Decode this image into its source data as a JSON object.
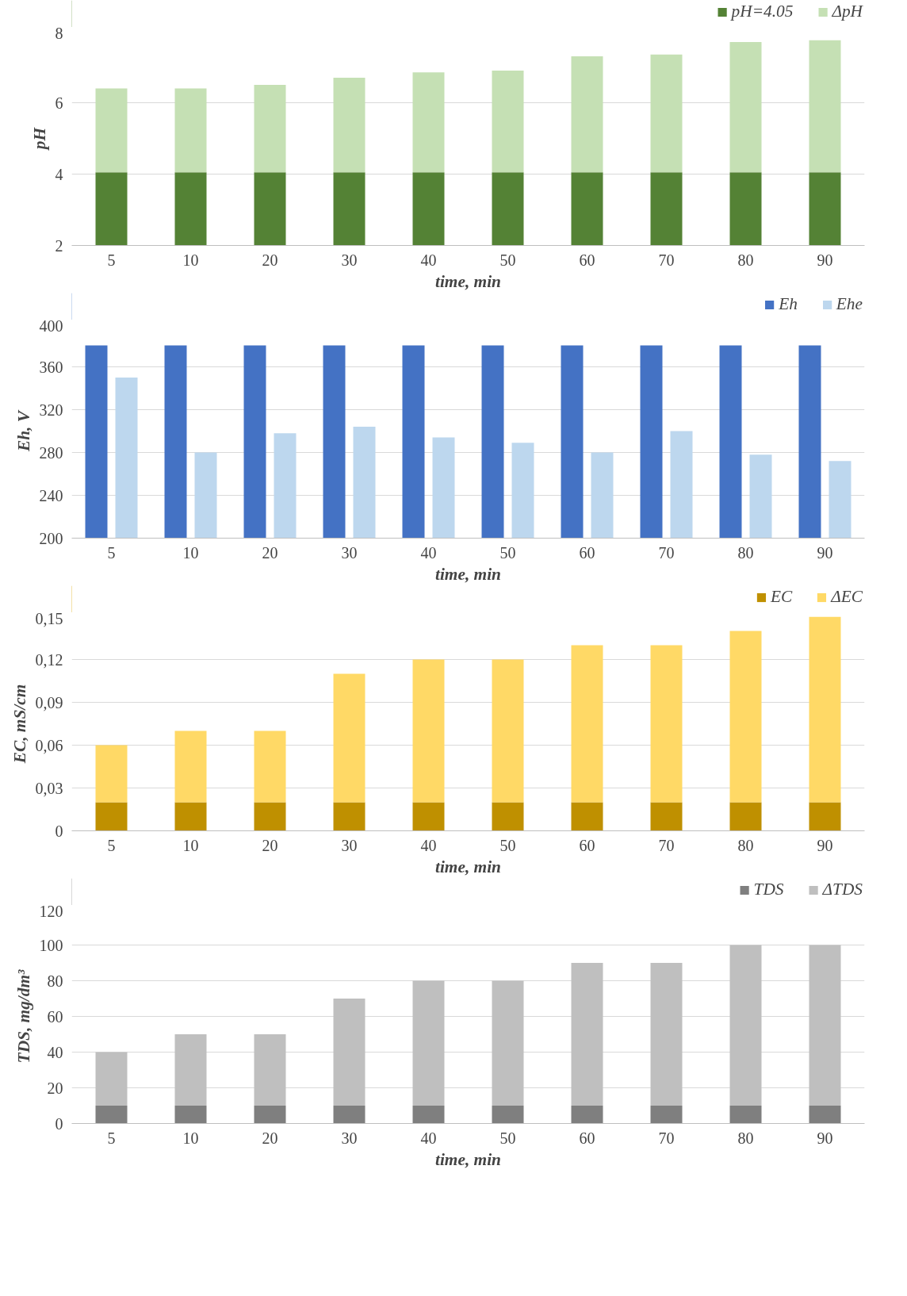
{
  "chart_data": [
    {
      "type": "bar",
      "stacked": true,
      "categories": [
        "5",
        "10",
        "20",
        "30",
        "40",
        "50",
        "60",
        "70",
        "80",
        "90"
      ],
      "xlabel": "time, min",
      "ylabel": "pH",
      "ylim": [
        2,
        8
      ],
      "yticks": [
        2,
        4,
        6,
        8
      ],
      "grid": "y",
      "legend": "top right",
      "series": [
        {
          "name": "pH=4.05",
          "color": "#548235",
          "values": [
            4.05,
            4.05,
            4.05,
            4.05,
            4.05,
            4.05,
            4.05,
            4.05,
            4.05,
            4.05
          ]
        },
        {
          "name": "ΔpH",
          "color": "#c5e0b4",
          "values": [
            2.35,
            2.35,
            2.45,
            2.65,
            2.8,
            2.85,
            3.25,
            3.3,
            3.65,
            3.7
          ]
        }
      ]
    },
    {
      "type": "bar",
      "categories": [
        "5",
        "10",
        "20",
        "30",
        "40",
        "50",
        "60",
        "70",
        "80",
        "90"
      ],
      "xlabel": "time, min",
      "ylabel": "Eh, V",
      "ylim": [
        200,
        400
      ],
      "yticks": [
        200,
        240,
        280,
        320,
        360,
        400
      ],
      "grid": "y",
      "legend": "top right",
      "series": [
        {
          "name": "Eh",
          "color": "#4472c4",
          "values": [
            380,
            380,
            380,
            380,
            380,
            380,
            380,
            380,
            380,
            380
          ]
        },
        {
          "name": "Ehe",
          "color": "#bdd7ee",
          "values": [
            350,
            280,
            298,
            304,
            294,
            289,
            280,
            300,
            278,
            272
          ]
        }
      ]
    },
    {
      "type": "bar",
      "stacked": true,
      "categories": [
        "5",
        "10",
        "20",
        "30",
        "40",
        "50",
        "60",
        "70",
        "80",
        "90"
      ],
      "xlabel": "time, min",
      "ylabel": "EC, mS/cm",
      "ylim": [
        0,
        0.15
      ],
      "yticks": [
        0,
        {
          "value": 0.03,
          "label": "0,03"
        },
        {
          "value": 0.06,
          "label": "0,06"
        },
        {
          "value": 0.09,
          "label": "0,09"
        },
        {
          "value": 0.12,
          "label": "0,12"
        },
        {
          "value": 0.15,
          "label": "0,15"
        }
      ],
      "grid": "y",
      "legend": "top right",
      "series": [
        {
          "name": "EC",
          "color": "#bf9000",
          "values": [
            0.02,
            0.02,
            0.02,
            0.02,
            0.02,
            0.02,
            0.02,
            0.02,
            0.02,
            0.02
          ]
        },
        {
          "name": "ΔEC",
          "color": "#ffd966",
          "values": [
            0.04,
            0.05,
            0.05,
            0.09,
            0.1,
            0.1,
            0.11,
            0.11,
            0.12,
            0.13
          ]
        }
      ]
    },
    {
      "type": "bar",
      "stacked": true,
      "categories": [
        "5",
        "10",
        "20",
        "30",
        "40",
        "50",
        "60",
        "70",
        "80",
        "90"
      ],
      "xlabel": "time, min",
      "ylabel": "TDS, mg/dm³",
      "ylim": [
        0,
        120
      ],
      "yticks": [
        0,
        20,
        40,
        60,
        80,
        100,
        120
      ],
      "grid": "y",
      "legend": "top right",
      "series": [
        {
          "name": "TDS",
          "color": "#7f7f7f",
          "values": [
            10,
            10,
            10,
            10,
            10,
            10,
            10,
            10,
            10,
            10
          ]
        },
        {
          "name": "ΔTDS",
          "color": "#bfbfbf",
          "values": [
            30,
            40,
            40,
            60,
            70,
            70,
            80,
            80,
            90,
            90
          ]
        }
      ]
    }
  ]
}
